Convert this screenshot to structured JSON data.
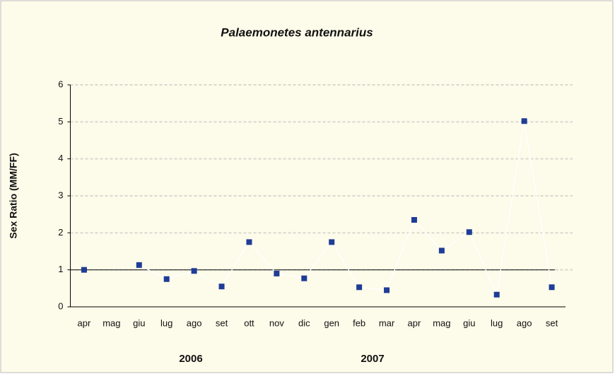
{
  "chart_data": {
    "type": "line",
    "title": "Palaemonetes antennarius",
    "y_label": "Sex Ratio (MM/FF)",
    "categories": [
      "apr",
      "mag",
      "giu",
      "lug",
      "ago",
      "set",
      "ott",
      "nov",
      "dic",
      "gen",
      "feb",
      "mar",
      "apr",
      "mag",
      "giu",
      "lug",
      "ago",
      "set"
    ],
    "groups": [
      "2006",
      "2007"
    ],
    "series": [
      {
        "name": "Sex Ratio",
        "color": "#1f3c96",
        "values": [
          1.0,
          null,
          1.13,
          0.75,
          0.97,
          0.55,
          1.75,
          0.9,
          0.77,
          1.75,
          0.53,
          0.45,
          2.35,
          1.52,
          2.02,
          0.33,
          5.02,
          0.53
        ]
      }
    ],
    "reference_line": 1,
    "ylim": [
      0,
      6
    ],
    "yticks": [
      0,
      1,
      2,
      3,
      4,
      5,
      6
    ],
    "grid": true
  }
}
